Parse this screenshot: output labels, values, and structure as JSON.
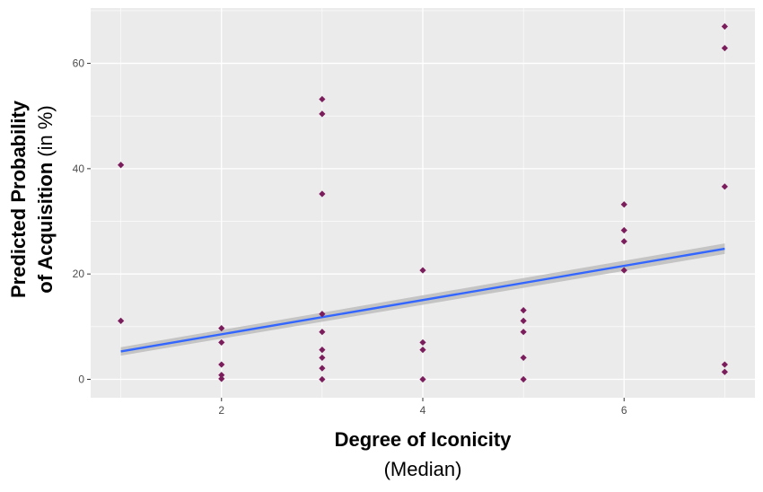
{
  "chart_data": {
    "type": "scatter",
    "title": "",
    "xlabel": "Degree of Iconicity",
    "xlabel_sub": "(Median)",
    "ylabel_line1": "Predicted Probability",
    "ylabel_line2_bold": "of Acquisition",
    "ylabel_line2_plain": " (in %)",
    "xlim": [
      0.7,
      7.3
    ],
    "ylim": [
      -3.5,
      70.5
    ],
    "x_ticks": [
      2,
      4,
      6
    ],
    "y_ticks": [
      0,
      20,
      40,
      60
    ],
    "grid": true,
    "points": [
      {
        "x": 1,
        "y": 40.7
      },
      {
        "x": 1,
        "y": 11.1
      },
      {
        "x": 2,
        "y": 9.7
      },
      {
        "x": 2,
        "y": 7.0
      },
      {
        "x": 2,
        "y": 2.8
      },
      {
        "x": 2,
        "y": 0.8
      },
      {
        "x": 2,
        "y": 0.1
      },
      {
        "x": 3,
        "y": 53.2
      },
      {
        "x": 3,
        "y": 50.4
      },
      {
        "x": 3,
        "y": 35.2
      },
      {
        "x": 3,
        "y": 12.4
      },
      {
        "x": 3,
        "y": 9.0
      },
      {
        "x": 3,
        "y": 5.6
      },
      {
        "x": 3,
        "y": 4.1
      },
      {
        "x": 3,
        "y": 2.1
      },
      {
        "x": 3,
        "y": 0.0
      },
      {
        "x": 4,
        "y": 20.7
      },
      {
        "x": 4,
        "y": 7.0
      },
      {
        "x": 4,
        "y": 5.6
      },
      {
        "x": 4,
        "y": 0.0
      },
      {
        "x": 5,
        "y": 13.1
      },
      {
        "x": 5,
        "y": 11.1
      },
      {
        "x": 5,
        "y": 9.0
      },
      {
        "x": 5,
        "y": 4.1
      },
      {
        "x": 5,
        "y": 0.0
      },
      {
        "x": 6,
        "y": 33.2
      },
      {
        "x": 6,
        "y": 28.3
      },
      {
        "x": 6,
        "y": 26.2
      },
      {
        "x": 6,
        "y": 20.7
      },
      {
        "x": 7,
        "y": 67.0
      },
      {
        "x": 7,
        "y": 62.9
      },
      {
        "x": 7,
        "y": 36.6
      },
      {
        "x": 7,
        "y": 2.8
      },
      {
        "x": 7,
        "y": 1.4
      }
    ],
    "fit_line": {
      "x": [
        1,
        7
      ],
      "y": [
        5.3,
        24.8
      ],
      "ci_halfwidth": [
        0.8,
        1.0
      ]
    },
    "colors": {
      "point": "#7b1c5c",
      "line": "#3366ff",
      "ribbon": "#bdbdbd",
      "panel": "#ebebeb",
      "grid": "#ffffff"
    }
  }
}
